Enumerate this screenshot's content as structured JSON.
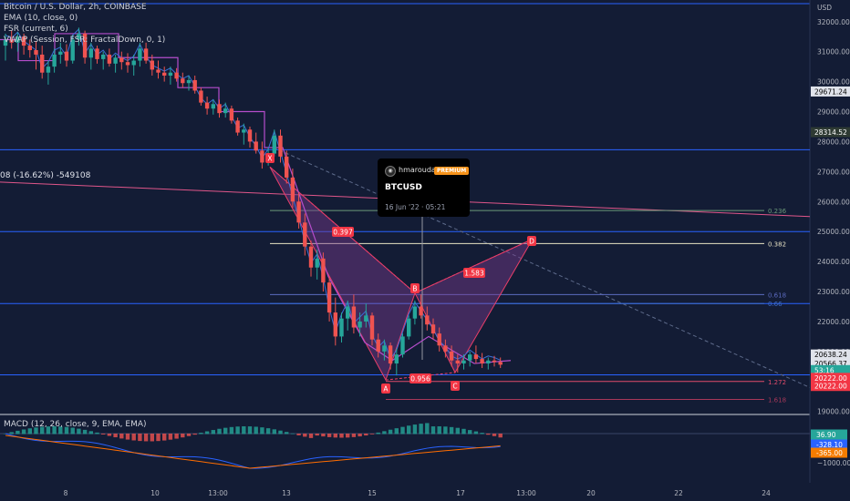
{
  "header": {
    "symbol_line": "Bitcoin / U.S. Dollar, 2h, COINBASE",
    "indicators": [
      "EMA (10, close, 0)",
      "FSR (current, 6)",
      "VWAP (Session, FSR: FractalDown, 0, 1)"
    ],
    "position_label": "08 (-16.62%) -549108"
  },
  "tooltip": {
    "user": "hmaroudas",
    "badge": "PREMIUM",
    "symbol": "BTCUSD",
    "date": "16 Jun '22 · 05:21"
  },
  "colors": {
    "background": "#131c35",
    "candle_up": "#26a69a",
    "candle_down": "#ef5350",
    "pattern_line": "#ea3e69",
    "pattern_fill": "#7b3b8f",
    "fsr_line": "#b54dcb",
    "hline_blue": "#2962ff",
    "fib_green": "#6c9a7a",
    "fib_orange": "#f7b955",
    "macd_line": "#2962ff",
    "signal_line": "#ff6d00",
    "label_red": "#f23645",
    "label_green": "#26a69a",
    "label_dark": "#363a45"
  },
  "chart_data": {
    "type": "candlestick",
    "instrument": "Bitcoin / U.S. Dollar, 2h, COINBASE",
    "currency": "USD",
    "x_ticks": [
      "8",
      "10",
      "13:00",
      "13",
      "15",
      "17",
      "13:00",
      "20",
      "22",
      "24"
    ],
    "y_ticks": [
      "32000.00",
      "31000.00",
      "30000.00",
      "29000.00",
      "28000.00",
      "27000.00",
      "26000.00",
      "25000.00",
      "24000.00",
      "23000.00",
      "22000.00",
      "21000.00",
      "20000.00",
      "19000.00"
    ],
    "y_range": [
      18900,
      32600
    ],
    "candles_ohlc": [
      [
        31200,
        31600,
        30700,
        31400
      ],
      [
        31400,
        31700,
        31100,
        31300
      ],
      [
        31300,
        31650,
        31000,
        31500
      ],
      [
        31500,
        31600,
        30900,
        31200
      ],
      [
        31200,
        31400,
        30800,
        31050
      ],
      [
        31050,
        31350,
        30400,
        30900
      ],
      [
        30900,
        31200,
        30100,
        30300
      ],
      [
        30300,
        30700,
        29900,
        30500
      ],
      [
        30500,
        31100,
        30300,
        30900
      ],
      [
        30900,
        31300,
        30600,
        31000
      ],
      [
        31000,
        31250,
        30500,
        30700
      ],
      [
        30700,
        31550,
        30600,
        31400
      ],
      [
        31400,
        31800,
        31200,
        31600
      ],
      [
        31600,
        31700,
        30600,
        30800
      ],
      [
        30800,
        31300,
        30400,
        31100
      ],
      [
        31100,
        31200,
        30600,
        30750
      ],
      [
        30750,
        31000,
        30400,
        30900
      ],
      [
        30900,
        31100,
        30500,
        30600
      ],
      [
        30600,
        30900,
        30300,
        30800
      ],
      [
        30800,
        31000,
        30400,
        30650
      ],
      [
        30650,
        30950,
        30300,
        30550
      ],
      [
        30550,
        30900,
        30200,
        30700
      ],
      [
        30700,
        31300,
        30500,
        31100
      ],
      [
        31100,
        31300,
        30600,
        30700
      ],
      [
        30700,
        30900,
        30200,
        30400
      ],
      [
        30400,
        30700,
        30100,
        30300
      ],
      [
        30300,
        30500,
        30000,
        30200
      ],
      [
        30200,
        30500,
        29900,
        30300
      ],
      [
        30300,
        30450,
        30000,
        30100
      ],
      [
        30100,
        30300,
        29800,
        29950
      ],
      [
        29950,
        30200,
        29700,
        30050
      ],
      [
        30050,
        30200,
        29600,
        29700
      ],
      [
        29700,
        29800,
        29200,
        29300
      ],
      [
        29300,
        29500,
        28900,
        29100
      ],
      [
        29100,
        29400,
        28900,
        29250
      ],
      [
        29250,
        29400,
        28800,
        28950
      ],
      [
        28950,
        29300,
        28800,
        29100
      ],
      [
        29100,
        29200,
        28600,
        28700
      ],
      [
        28700,
        28800,
        28200,
        28300
      ],
      [
        28300,
        28600,
        27900,
        28400
      ],
      [
        28400,
        28500,
        27800,
        28000
      ],
      [
        28000,
        28300,
        27600,
        27700
      ],
      [
        27700,
        28000,
        27100,
        27300
      ],
      [
        27300,
        27800,
        27200,
        27600
      ],
      [
        27600,
        28400,
        27500,
        28200
      ],
      [
        28200,
        28400,
        27300,
        27500
      ],
      [
        27500,
        27700,
        26600,
        26800
      ],
      [
        26800,
        27100,
        25800,
        26000
      ],
      [
        26000,
        26300,
        25100,
        25300
      ],
      [
        25300,
        25600,
        24200,
        24500
      ],
      [
        24500,
        24700,
        23500,
        23800
      ],
      [
        23800,
        24400,
        23400,
        24100
      ],
      [
        24100,
        24300,
        23000,
        23300
      ],
      [
        23300,
        23500,
        22000,
        22300
      ],
      [
        22300,
        22800,
        21200,
        21500
      ],
      [
        21500,
        22300,
        21300,
        22100
      ],
      [
        22100,
        22700,
        21700,
        22500
      ],
      [
        22500,
        22900,
        21600,
        21800
      ],
      [
        21800,
        22300,
        21500,
        22000
      ],
      [
        22000,
        22600,
        21800,
        22200
      ],
      [
        22200,
        22300,
        21200,
        21400
      ],
      [
        21400,
        21600,
        20800,
        21000
      ],
      [
        21000,
        21400,
        20700,
        21200
      ],
      [
        21200,
        21300,
        20400,
        20600
      ],
      [
        20600,
        21100,
        20200,
        20900
      ],
      [
        20900,
        21600,
        20800,
        21500
      ],
      [
        21500,
        22200,
        21400,
        22100
      ],
      [
        22100,
        22700,
        21900,
        22500
      ],
      [
        22500,
        22900,
        22100,
        22200
      ],
      [
        22200,
        22500,
        21700,
        21900
      ],
      [
        21900,
        22100,
        21400,
        21600
      ],
      [
        21600,
        21800,
        21000,
        21200
      ],
      [
        21200,
        21400,
        20800,
        21000
      ],
      [
        21000,
        21200,
        20500,
        20700
      ],
      [
        20700,
        20900,
        20300,
        20600
      ],
      [
        20600,
        20900,
        20400,
        20700
      ],
      [
        20700,
        21000,
        20500,
        20900
      ],
      [
        20900,
        21200,
        20600,
        20750
      ],
      [
        20750,
        20950,
        20450,
        20600
      ],
      [
        20600,
        20800,
        20400,
        20700
      ],
      [
        20700,
        20850,
        20500,
        20650
      ],
      [
        20650,
        20800,
        20450,
        20560
      ]
    ],
    "fib_levels": [
      {
        "label": "0.236",
        "price": 25700
      },
      {
        "label": "0.382",
        "price": 24600
      },
      {
        "label": "0.618",
        "price": 22900
      },
      {
        "label": "0.66",
        "price": 22600
      },
      {
        "label": "1.272",
        "price": 20000
      },
      {
        "label": "1.618",
        "price": 19400
      }
    ],
    "harmonic_pattern": {
      "points": [
        "X",
        "A",
        "B",
        "C",
        "D"
      ],
      "ratios": [
        "0.397",
        "1.583",
        "0.956"
      ]
    },
    "price_labels": [
      "29671.24",
      "28314.52",
      "20638.24",
      "20566.37",
      "53:16",
      "20222.00",
      "20222.00"
    ],
    "macd": {
      "label": "MACD (12, 26, close, 9, EMA, EMA)",
      "y_ticks": [
        "−1000.00"
      ],
      "value_labels": [
        "36.90",
        "-328.10",
        "-365.00"
      ]
    }
  }
}
